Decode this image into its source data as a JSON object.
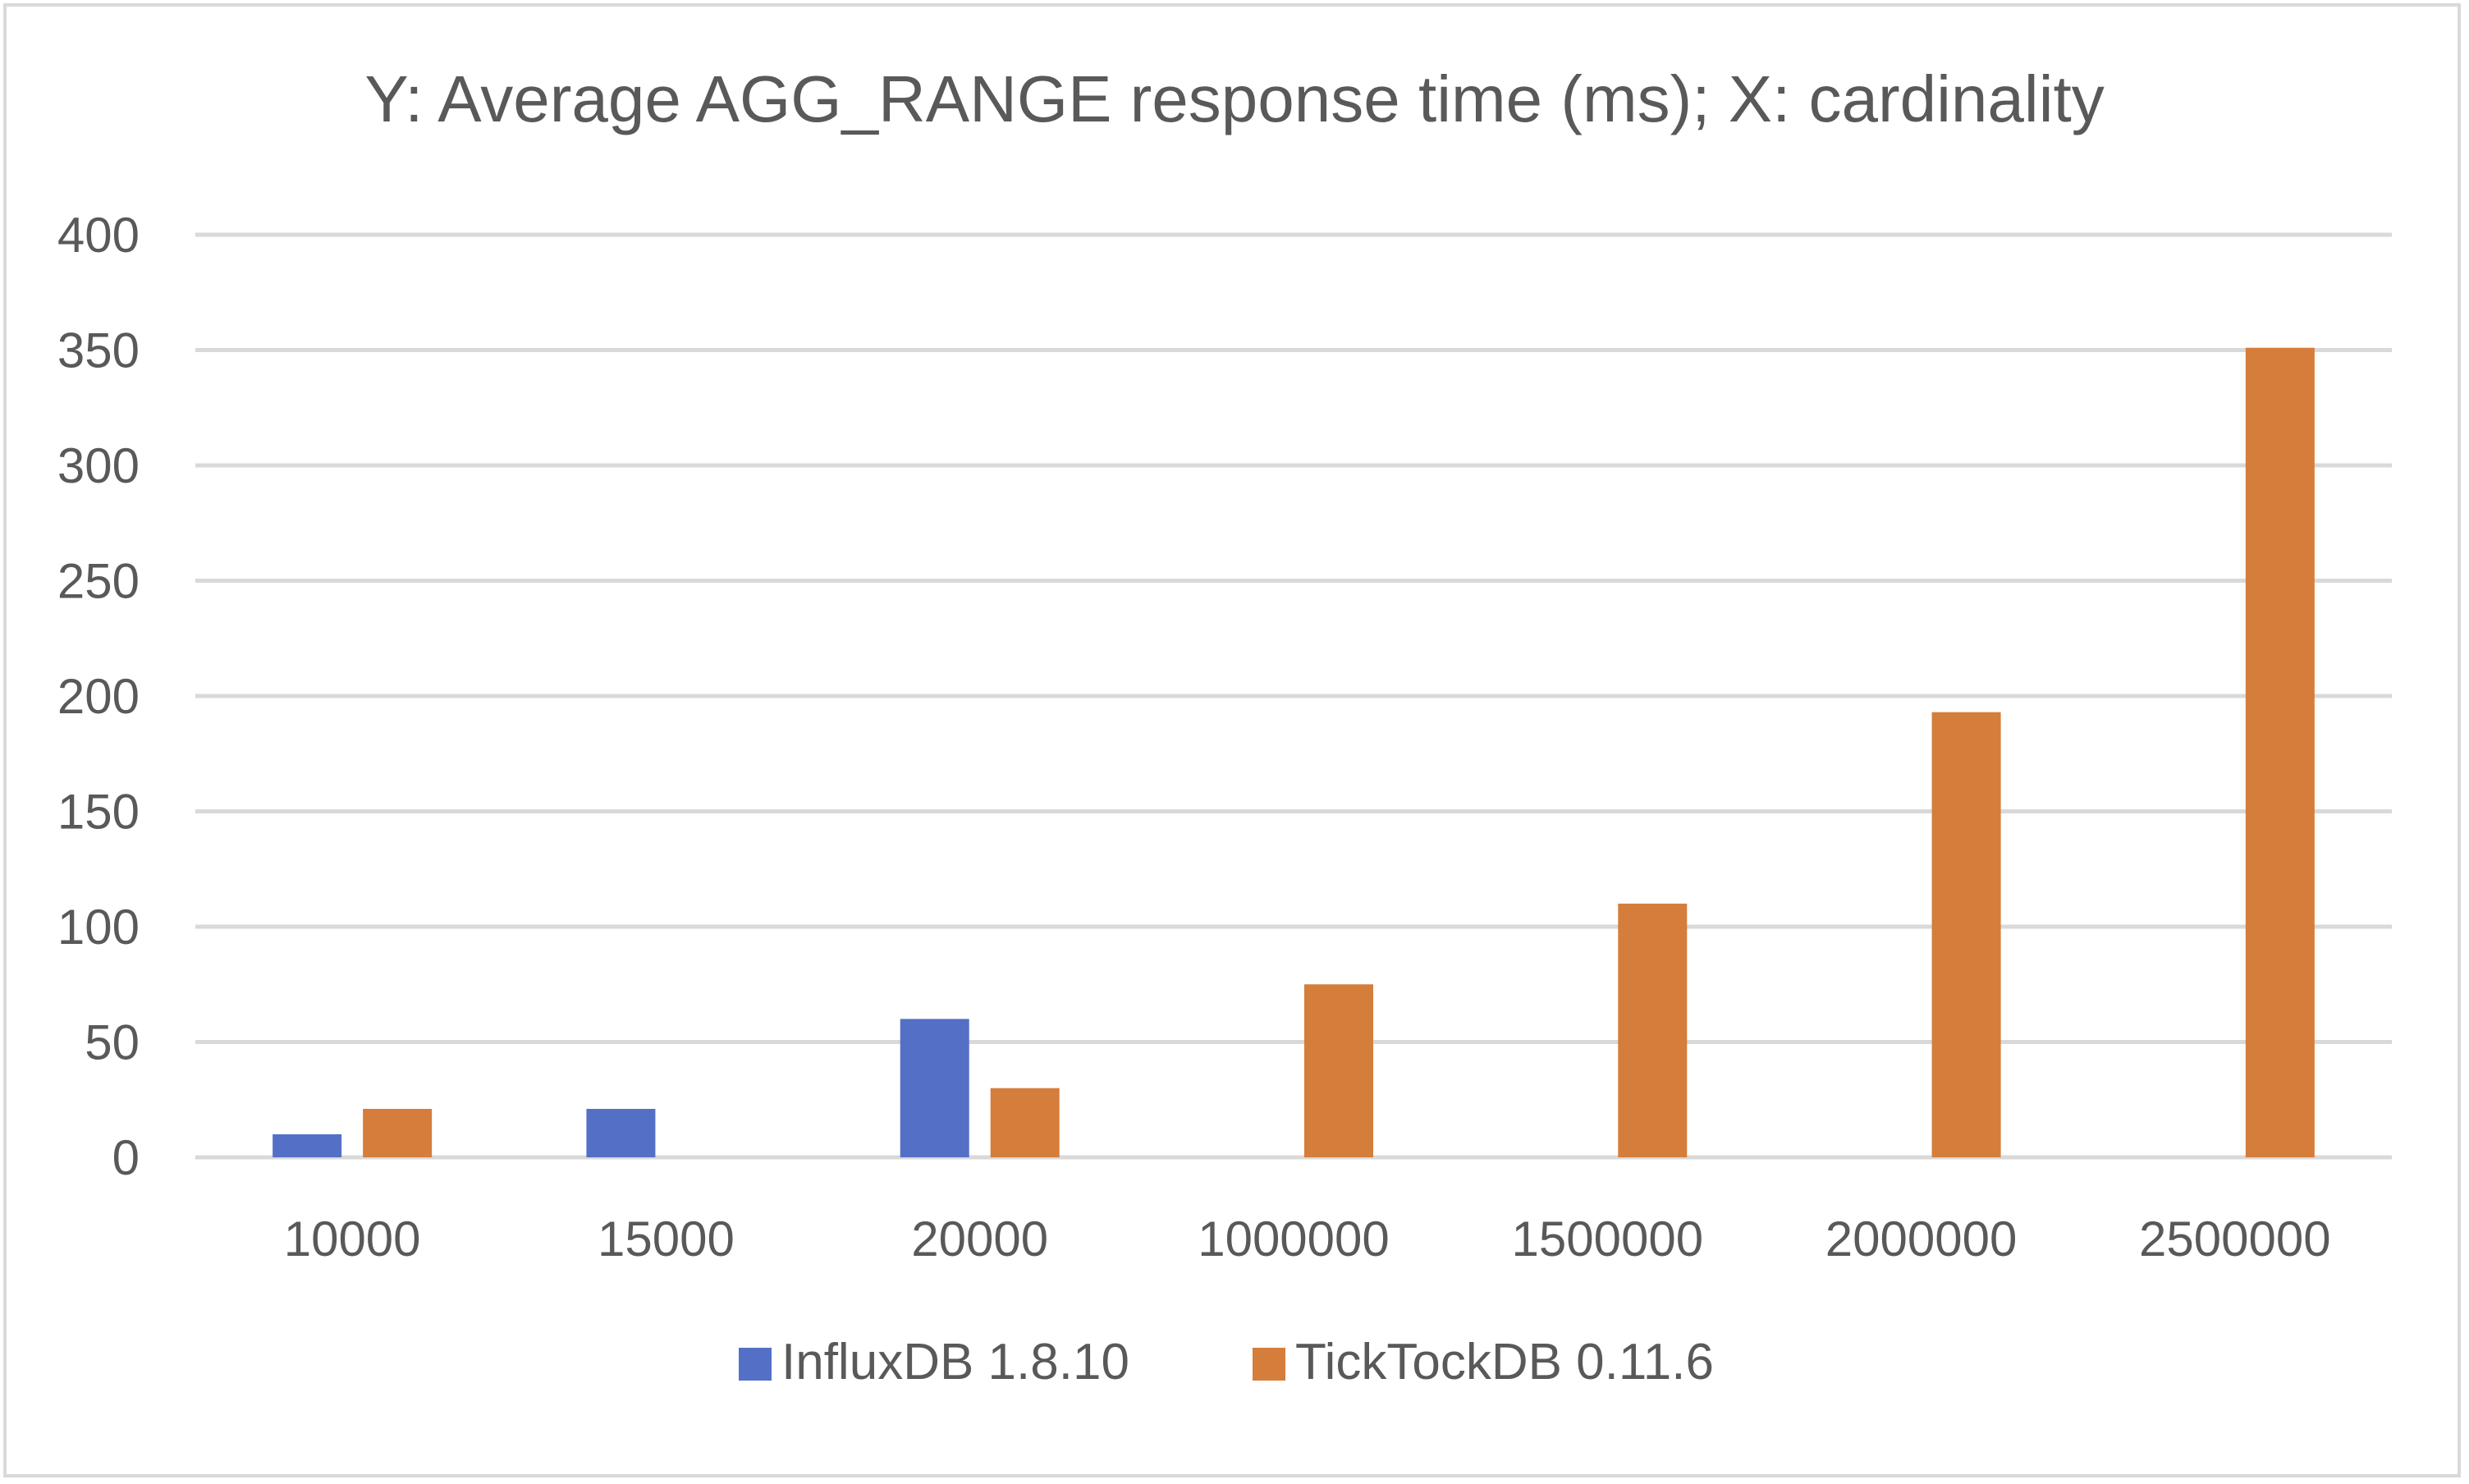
{
  "chart_data": {
    "type": "bar",
    "title": "Y: Average AGG_RANGE response time (ms); X: cardinality",
    "xlabel": "",
    "ylabel": "",
    "categories": [
      "10000",
      "15000",
      "20000",
      "1000000",
      "1500000",
      "2000000",
      "2500000"
    ],
    "series": [
      {
        "name": "InfluxDB 1.8.10",
        "color": "#5470c6",
        "values": [
          10,
          21,
          60,
          null,
          null,
          null,
          null
        ]
      },
      {
        "name": "TickTockDB 0.11.6",
        "color": "#d57d3b",
        "values": [
          21,
          null,
          30,
          75,
          110,
          193,
          351
        ]
      }
    ],
    "ylim": [
      0,
      400
    ],
    "yticks": [
      0,
      50,
      100,
      150,
      200,
      250,
      300,
      350,
      400
    ],
    "grid": true,
    "legend_position": "bottom"
  }
}
